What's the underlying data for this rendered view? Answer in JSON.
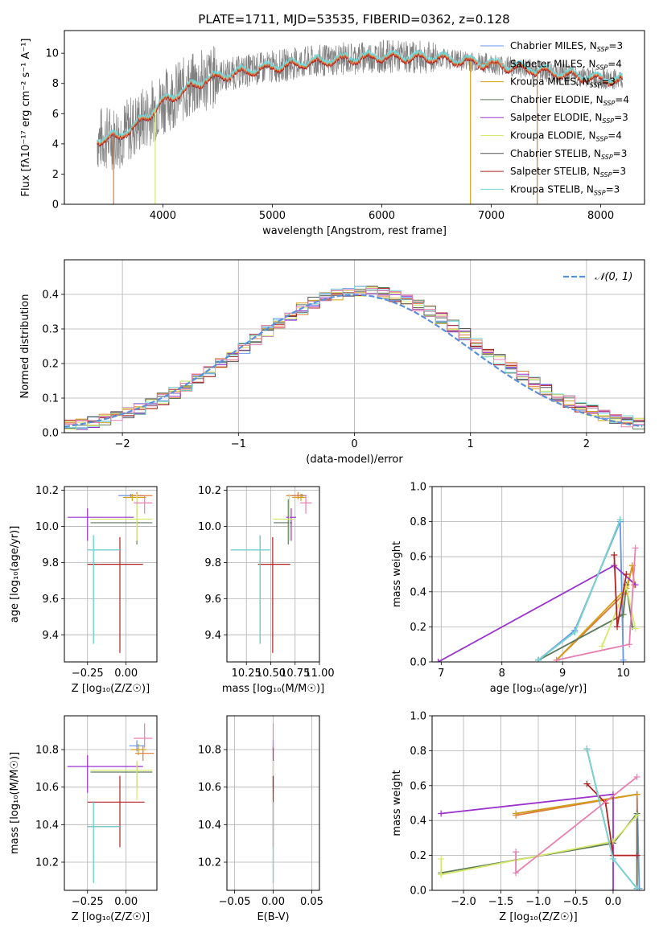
{
  "figure_title": "PLATE=1711, MJD=53535, FIBERID=0362, z=0.128",
  "colors": {
    "chabrier_miles": "#6495ED",
    "salpeter_miles": "#E07B39",
    "kroupa_miles": "#D4A017",
    "chabrier_elodie": "#5C7A5C",
    "salpeter_elodie": "#9A32CD",
    "kroupa_elodie": "#D7E96A",
    "chabrier_stelib": "#555555",
    "salpeter_stelib": "#B22222",
    "kroupa_stelib": "#76D7D7",
    "data_spectrum": "#808080",
    "normal_curve": "#5B8FD9",
    "pink": "#E87FB0"
  },
  "chart_data": [
    {
      "id": "spectrum",
      "type": "line",
      "xlabel": "wavelength [Angstrom, rest frame]",
      "ylabel": "Flux [fλ10⁻¹⁷ erg cm⁻² s⁻¹ A⁻¹]",
      "xlim": [
        3100,
        8400
      ],
      "ylim": [
        0,
        11.5
      ],
      "xticks": [
        "4000",
        "5000",
        "6000",
        "7000",
        "8000"
      ],
      "yticks": [
        "0",
        "2",
        "4",
        "6",
        "8",
        "10"
      ],
      "x_range_data": [
        3400,
        8200
      ],
      "continuum_model": {
        "x": [
          3400,
          3600,
          3800,
          4000,
          4200,
          4400,
          4800,
          5200,
          5600,
          6000,
          6500,
          7000,
          7500,
          8000,
          8200
        ],
        "y": [
          4.3,
          4.5,
          5.5,
          6.8,
          7.6,
          8.3,
          8.9,
          9.3,
          9.6,
          9.8,
          9.7,
          9.3,
          8.8,
          8.3,
          8.2
        ]
      },
      "legend": [
        {
          "label": "Chabrier MILES, N",
          "sub": "SSP",
          "tail": "=3",
          "color": "chabrier_miles"
        },
        {
          "label": "Salpeter MILES, N",
          "sub": "SSP",
          "tail": "=4",
          "color": "salpeter_miles"
        },
        {
          "label": "Kroupa MILES, N",
          "sub": "SSP",
          "tail": "=3",
          "color": "kroupa_miles"
        },
        {
          "label": "Chabrier ELODIE, N",
          "sub": "SSP",
          "tail": "=4",
          "color": "chabrier_elodie"
        },
        {
          "label": "Salpeter ELODIE, N",
          "sub": "SSP",
          "tail": "=3",
          "color": "salpeter_elodie"
        },
        {
          "label": "Kroupa ELODIE, N",
          "sub": "SSP",
          "tail": "=4",
          "color": "kroupa_elodie"
        },
        {
          "label": "Chabrier STELIB, N",
          "sub": "SSP",
          "tail": "=3",
          "color": "chabrier_stelib"
        },
        {
          "label": "Salpeter STELIB, N",
          "sub": "SSP",
          "tail": "=3",
          "color": "salpeter_stelib"
        },
        {
          "label": "Kroupa STELIB, N",
          "sub": "SSP",
          "tail": "=3",
          "color": "kroupa_stelib"
        }
      ],
      "legend_placement": "right"
    },
    {
      "id": "residuals",
      "type": "line",
      "xlabel": "(data-model)/error",
      "ylabel": "Normed distribution",
      "xlim": [
        -2.5,
        2.5
      ],
      "ylim": [
        0,
        0.5
      ],
      "xticks": [
        "−2",
        "−1",
        "0",
        "1",
        "2"
      ],
      "yticks": [
        "0.0",
        "0.1",
        "0.2",
        "0.3",
        "0.4"
      ],
      "bin_width": 0.1,
      "legend": [
        {
          "label": "𝒩(0, 1)",
          "color": "normal_curve"
        }
      ],
      "legend_placement": "top-right",
      "grid": true
    },
    {
      "id": "age_vs_Z",
      "type": "scatter",
      "xlabel": "Z [log₁₀(Z/Z☉)]",
      "ylabel": "age  [log₁₀(age/yr)]",
      "xlim": [
        -0.4,
        0.2
      ],
      "ylim": [
        9.25,
        10.22
      ],
      "xticks": [
        "−0.25",
        "0.00"
      ],
      "yticks": [
        "9.4",
        "9.6",
        "9.8",
        "10.0",
        "10.2"
      ],
      "grid": true,
      "points": [
        {
          "c": "chabrier_miles",
          "x": 0.03,
          "xerr": [
            0.08,
            0.09
          ],
          "y": 10.17,
          "yerr": [
            0.01,
            0.01
          ]
        },
        {
          "c": "salpeter_miles",
          "x": 0.07,
          "xerr": [
            0.05,
            0.1
          ],
          "y": 10.17,
          "yerr": [
            0.02,
            0.02
          ]
        },
        {
          "c": "kroupa_miles",
          "x": 0.04,
          "xerr": [
            0.06,
            0.09
          ],
          "y": 10.16,
          "yerr": [
            0.02,
            0.02
          ]
        },
        {
          "c": "chabrier_elodie",
          "x": 0.07,
          "xerr": [
            0.3,
            0.1
          ],
          "y": 10.02,
          "yerr": [
            0.12,
            0.13
          ]
        },
        {
          "c": "salpeter_elodie",
          "x": -0.25,
          "xerr": [
            0.13,
            0.3
          ],
          "y": 10.05,
          "yerr": [
            0.13,
            0.05
          ]
        },
        {
          "c": "kroupa_elodie",
          "x": 0.07,
          "xerr": [
            0.3,
            0.1
          ],
          "y": 10.04,
          "yerr": [
            0.12,
            0.14
          ]
        },
        {
          "c": "chabrier_stelib",
          "x": -0.21,
          "xerr": [
            0.04,
            0.17
          ],
          "y": 9.87,
          "yerr": [
            0.52,
            0.08
          ]
        },
        {
          "c": "salpeter_stelib",
          "x": -0.04,
          "xerr": [
            0.21,
            0.15
          ],
          "y": 9.79,
          "yerr": [
            0.49,
            0.15
          ]
        },
        {
          "c": "kroupa_stelib",
          "x": -0.21,
          "xerr": [
            0.04,
            0.17
          ],
          "y": 9.87,
          "yerr": [
            0.52,
            0.08
          ]
        },
        {
          "c": "pink",
          "x": 0.12,
          "xerr": [
            0.07,
            0.05
          ],
          "y": 10.13,
          "yerr": [
            0.06,
            0.04
          ]
        }
      ]
    },
    {
      "id": "age_vs_mass",
      "type": "scatter",
      "xlabel": "mass [log₁₀(M/M☉)]",
      "ylabel": "",
      "xlim": [
        10.05,
        11.0
      ],
      "ylim": [
        9.25,
        10.22
      ],
      "xticks": [
        "10.25",
        "10.50",
        "10.75",
        "11.00"
      ],
      "yticks": [
        "9.4",
        "9.6",
        "9.8",
        "10.0",
        "10.2"
      ],
      "grid": true,
      "points": [
        {
          "c": "chabrier_miles",
          "x": 10.82,
          "xerr": [
            0.1,
            0.05
          ],
          "y": 10.17,
          "yerr": [
            0.01,
            0.01
          ]
        },
        {
          "c": "salpeter_miles",
          "x": 10.78,
          "xerr": [
            0.12,
            0.07
          ],
          "y": 10.17,
          "yerr": [
            0.02,
            0.02
          ]
        },
        {
          "c": "kroupa_miles",
          "x": 10.81,
          "xerr": [
            0.09,
            0.05
          ],
          "y": 10.16,
          "yerr": [
            0.02,
            0.02
          ]
        },
        {
          "c": "chabrier_elodie",
          "x": 10.68,
          "xerr": [
            0.15,
            0.04
          ],
          "y": 10.02,
          "yerr": [
            0.12,
            0.13
          ]
        },
        {
          "c": "salpeter_elodie",
          "x": 10.71,
          "xerr": [
            0.05,
            0.05
          ],
          "y": 10.05,
          "yerr": [
            0.13,
            0.05
          ]
        },
        {
          "c": "kroupa_elodie",
          "x": 10.69,
          "xerr": [
            0.17,
            0.05
          ],
          "y": 10.04,
          "yerr": [
            0.12,
            0.14
          ]
        },
        {
          "c": "chabrier_stelib",
          "x": 10.39,
          "xerr": [
            0.3,
            0.1
          ],
          "y": 9.87,
          "yerr": [
            0.52,
            0.08
          ]
        },
        {
          "c": "salpeter_stelib",
          "x": 10.52,
          "xerr": [
            0.15,
            0.18
          ],
          "y": 9.79,
          "yerr": [
            0.49,
            0.15
          ]
        },
        {
          "c": "kroupa_stelib",
          "x": 10.39,
          "xerr": [
            0.3,
            0.1
          ],
          "y": 9.87,
          "yerr": [
            0.52,
            0.08
          ]
        },
        {
          "c": "pink",
          "x": 10.86,
          "xerr": [
            0.06,
            0.06
          ],
          "y": 10.13,
          "yerr": [
            0.06,
            0.04
          ]
        }
      ]
    },
    {
      "id": "weight_vs_age",
      "type": "line",
      "xlabel": "age  [log₁₀(age/yr)]",
      "ylabel": "mass weight",
      "xlim": [
        6.85,
        10.35
      ],
      "ylim": [
        0,
        1.0
      ],
      "xticks": [
        "7",
        "8",
        "9",
        "10"
      ],
      "yticks": [
        "0.0",
        "0.2",
        "0.4",
        "0.6",
        "0.8",
        "1.0"
      ],
      "grid": true,
      "series": [
        {
          "c": "chabrier_miles",
          "x": [
            8.6,
            9.2,
            9.95,
            10.0
          ],
          "y": [
            0.01,
            0.18,
            0.8,
            0.01
          ]
        },
        {
          "c": "salpeter_miles",
          "x": [
            8.9,
            10.05,
            10.15,
            10.18
          ],
          "y": [
            0.01,
            0.4,
            0.55,
            0.44
          ]
        },
        {
          "c": "kroupa_miles",
          "x": [
            8.9,
            10.05,
            10.15
          ],
          "y": [
            0.01,
            0.42,
            0.55
          ]
        },
        {
          "c": "chabrier_elodie",
          "x": [
            8.6,
            10.0,
            10.05,
            10.15
          ],
          "y": [
            0.01,
            0.27,
            0.44,
            0.2
          ]
        },
        {
          "c": "salpeter_elodie",
          "x": [
            6.95,
            9.85,
            10.2
          ],
          "y": [
            0.0,
            0.55,
            0.44
          ]
        },
        {
          "c": "kroupa_elodie",
          "x": [
            9.65,
            10.05,
            10.2
          ],
          "y": [
            0.09,
            0.43,
            0.19
          ]
        },
        {
          "c": "chabrier_stelib",
          "x": [
            8.6,
            9.2,
            9.95
          ],
          "y": [
            0.01,
            0.17,
            0.81
          ]
        },
        {
          "c": "salpeter_stelib",
          "x": [
            9.85,
            9.9,
            10.05
          ],
          "y": [
            0.61,
            0.2,
            0.5
          ]
        },
        {
          "c": "kroupa_stelib",
          "x": [
            8.6,
            9.2,
            9.95
          ],
          "y": [
            0.01,
            0.17,
            0.81
          ]
        },
        {
          "c": "pink",
          "x": [
            8.9,
            10.1,
            10.2
          ],
          "y": [
            0.01,
            0.1,
            0.65
          ]
        }
      ]
    },
    {
      "id": "mass_vs_Z",
      "type": "scatter",
      "xlabel": "Z [log₁₀(Z/Z☉)]",
      "ylabel": "mass [log₁₀(M/M☉)]",
      "xlim": [
        -0.4,
        0.2
      ],
      "ylim": [
        10.05,
        10.98
      ],
      "xticks": [
        "−0.25",
        "0.00"
      ],
      "yticks": [
        "10.2",
        "10.4",
        "10.6",
        "10.8"
      ],
      "grid": true,
      "points": [
        {
          "c": "chabrier_miles",
          "x": 0.07,
          "xerr": [
            0.05,
            0.05
          ],
          "y": 10.82,
          "yerr": [
            0.03,
            0.03
          ]
        },
        {
          "c": "salpeter_miles",
          "x": 0.11,
          "xerr": [
            0.05,
            0.07
          ],
          "y": 10.78,
          "yerr": [
            0.04,
            0.04
          ]
        },
        {
          "c": "kroupa_miles",
          "x": 0.08,
          "xerr": [
            0.05,
            0.05
          ],
          "y": 10.8,
          "yerr": [
            0.03,
            0.03
          ]
        },
        {
          "c": "chabrier_elodie",
          "x": 0.07,
          "xerr": [
            0.3,
            0.1
          ],
          "y": 10.68,
          "yerr": [
            0.08,
            0.06
          ]
        },
        {
          "c": "salpeter_elodie",
          "x": -0.25,
          "xerr": [
            0.13,
            0.36
          ],
          "y": 10.71,
          "yerr": [
            0.14,
            0.06
          ]
        },
        {
          "c": "kroupa_elodie",
          "x": 0.07,
          "xerr": [
            0.3,
            0.1
          ],
          "y": 10.69,
          "yerr": [
            0.16,
            0.05
          ]
        },
        {
          "c": "chabrier_stelib",
          "x": -0.21,
          "xerr": [
            0.04,
            0.17
          ],
          "y": 10.39,
          "yerr": [
            0.3,
            0.13
          ]
        },
        {
          "c": "salpeter_stelib",
          "x": -0.04,
          "xerr": [
            0.21,
            0.16
          ],
          "y": 10.52,
          "yerr": [
            0.24,
            0.14
          ]
        },
        {
          "c": "kroupa_stelib",
          "x": -0.21,
          "xerr": [
            0.04,
            0.17
          ],
          "y": 10.39,
          "yerr": [
            0.3,
            0.13
          ]
        },
        {
          "c": "pink",
          "x": 0.12,
          "xerr": [
            0.07,
            0.05
          ],
          "y": 10.86,
          "yerr": [
            0.05,
            0.08
          ]
        }
      ]
    },
    {
      "id": "mass_vs_EBV",
      "type": "scatter",
      "xlabel": "E(B-V)",
      "ylabel": "",
      "xlim": [
        -0.06,
        0.06
      ],
      "ylim": [
        10.05,
        10.98
      ],
      "xticks": [
        "−0.05",
        "0.00",
        "0.05"
      ],
      "yticks": [
        "10.2",
        "10.4",
        "10.6",
        "10.8"
      ],
      "grid": true,
      "points": [
        {
          "c": "chabrier_miles",
          "x": 0.0,
          "xerr": [
            0,
            0
          ],
          "y": 10.82,
          "yerr": [
            0.03,
            0.03
          ]
        },
        {
          "c": "salpeter_miles",
          "x": 0.0,
          "xerr": [
            0,
            0
          ],
          "y": 10.78,
          "yerr": [
            0.04,
            0.04
          ]
        },
        {
          "c": "chabrier_elodie",
          "x": 0.0,
          "xerr": [
            0,
            0
          ],
          "y": 10.68,
          "yerr": [
            0.08,
            0.06
          ]
        },
        {
          "c": "salpeter_elodie",
          "x": 0.0,
          "xerr": [
            0,
            0
          ],
          "y": 10.71,
          "yerr": [
            0.14,
            0.14
          ]
        },
        {
          "c": "kroupa_elodie",
          "x": 0.0,
          "xerr": [
            0,
            0
          ],
          "y": 10.69,
          "yerr": [
            0.16,
            0.05
          ]
        },
        {
          "c": "salpeter_stelib",
          "x": 0.0,
          "xerr": [
            0,
            0
          ],
          "y": 10.52,
          "yerr": [
            0.24,
            0.14
          ]
        },
        {
          "c": "chabrier_stelib",
          "x": 0.0,
          "xerr": [
            0,
            0
          ],
          "y": 10.39,
          "yerr": [
            0.3,
            0.13
          ]
        },
        {
          "c": "kroupa_stelib",
          "x": 0.0,
          "xerr": [
            0,
            0
          ],
          "y": 10.39,
          "yerr": [
            0.3,
            0.13
          ]
        },
        {
          "c": "pink",
          "x": 0.0,
          "xerr": [
            0,
            0
          ],
          "y": 10.86,
          "yerr": [
            0.05,
            0.08
          ]
        }
      ]
    },
    {
      "id": "weight_vs_Z",
      "type": "line",
      "xlabel": "Z [log₁₀(Z/Z☉)]",
      "ylabel": "mass weight",
      "xlim": [
        -2.42,
        0.42
      ],
      "ylim": [
        0,
        1.0
      ],
      "xticks": [
        "−2.0",
        "−1.5",
        "−1.0",
        "−0.5",
        "0.0"
      ],
      "yticks": [
        "0.0",
        "0.2",
        "0.4",
        "0.6",
        "0.8",
        "1.0"
      ],
      "grid": true,
      "series": [
        {
          "c": "chabrier_miles",
          "x": [
            -1.3,
            0.32,
            0.35
          ],
          "y": [
            0.44,
            0.55,
            0.01
          ]
        },
        {
          "c": "salpeter_miles",
          "x": [
            -1.3,
            0.32,
            0.32
          ],
          "y": [
            0.43,
            0.55,
            0.01
          ]
        },
        {
          "c": "kroupa_miles",
          "x": [
            -1.3,
            0.32
          ],
          "y": [
            0.44,
            0.55
          ]
        },
        {
          "c": "chabrier_elodie",
          "x": [
            -2.3,
            0.0,
            0.32,
            0.32
          ],
          "y": [
            0.1,
            0.27,
            0.44,
            0.01
          ]
        },
        {
          "c": "salpeter_elodie",
          "x": [
            -2.3,
            0.0,
            0.0
          ],
          "y": [
            0.44,
            0.55,
            0.0
          ]
        },
        {
          "c": "kroupa_elodie",
          "x": [
            -2.3,
            -2.3,
            0.0,
            0.32
          ],
          "y": [
            0.18,
            0.09,
            0.28,
            0.43
          ]
        },
        {
          "c": "chabrier_stelib",
          "x": [
            -0.35,
            0.0,
            0.32
          ],
          "y": [
            0.81,
            0.18,
            0.01
          ]
        },
        {
          "c": "salpeter_stelib",
          "x": [
            -0.35,
            -0.1,
            0.0,
            0.32
          ],
          "y": [
            0.61,
            0.5,
            0.2,
            0.2
          ]
        },
        {
          "c": "kroupa_stelib",
          "x": [
            -0.35,
            0.0,
            0.32
          ],
          "y": [
            0.81,
            0.18,
            0.01
          ]
        },
        {
          "c": "pink",
          "x": [
            -1.3,
            -1.3,
            0.32
          ],
          "y": [
            0.22,
            0.1,
            0.65
          ]
        }
      ]
    }
  ]
}
